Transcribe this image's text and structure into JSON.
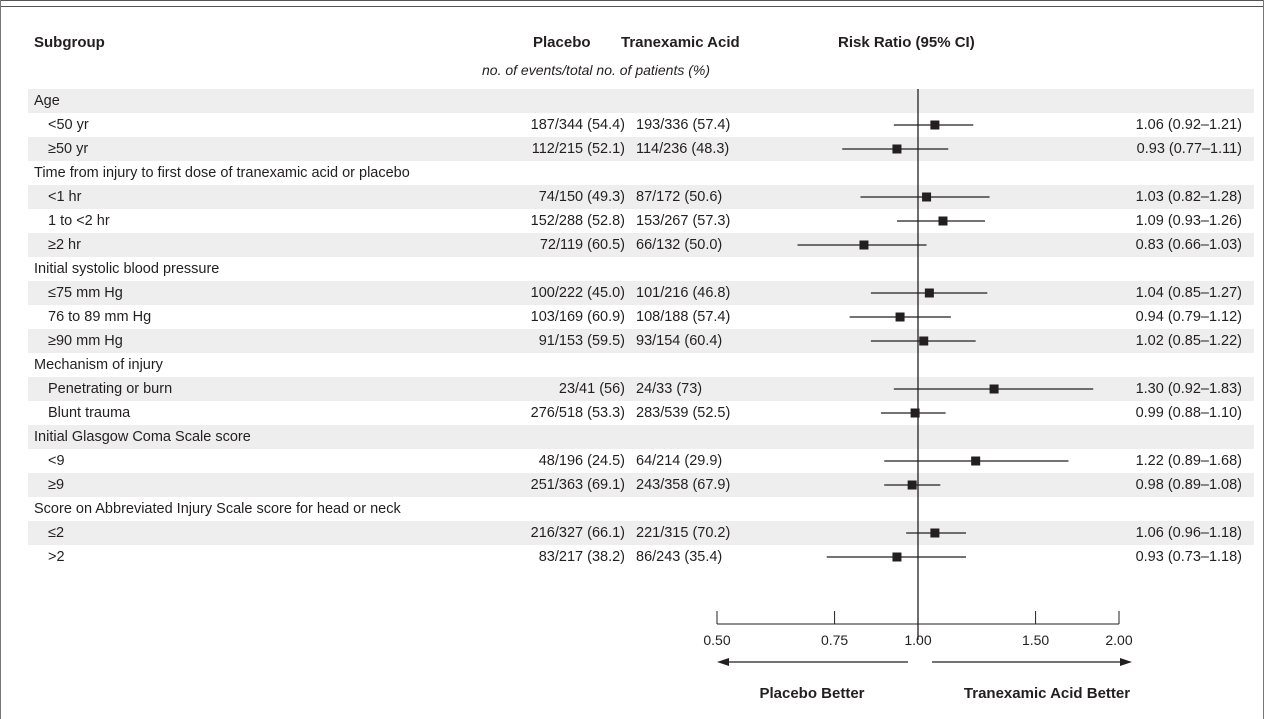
{
  "headers": {
    "subgroup": "Subgroup",
    "placebo": "Placebo",
    "tranexamic": "Tranexamic Acid",
    "risk_ratio": "Risk Ratio (95% CI)",
    "events_note": "no. of events/total no. of patients (%)"
  },
  "rows": [
    {
      "label": "Age",
      "type": "group"
    },
    {
      "label": "<50 yr",
      "type": "item",
      "placebo": "187/344 (54.4)",
      "txa": "193/336 (57.4)",
      "ci": "1.06 (0.92–1.21)"
    },
    {
      "label": "≥50 yr",
      "type": "item",
      "placebo": "112/215 (52.1)",
      "txa": "114/236 (48.3)",
      "ci": "0.93 (0.77–1.11)"
    },
    {
      "label": "Time from injury to first dose of tranexamic acid or placebo",
      "type": "group"
    },
    {
      "label": "<1 hr",
      "type": "item",
      "placebo": "74/150 (49.3)",
      "txa": "87/172 (50.6)",
      "ci": "1.03 (0.82–1.28)"
    },
    {
      "label": "1 to <2 hr",
      "type": "item",
      "placebo": "152/288 (52.8)",
      "txa": "153/267 (57.3)",
      "ci": "1.09 (0.93–1.26)"
    },
    {
      "label": "≥2 hr",
      "type": "item",
      "placebo": "72/119 (60.5)",
      "txa": "66/132 (50.0)",
      "ci": "0.83 (0.66–1.03)"
    },
    {
      "label": "Initial systolic blood pressure",
      "type": "group"
    },
    {
      "label": "≤75 mm Hg",
      "type": "item",
      "placebo": "100/222 (45.0)",
      "txa": "101/216 (46.8)",
      "ci": "1.04 (0.85–1.27)"
    },
    {
      "label": "76 to 89 mm Hg",
      "type": "item",
      "placebo": "103/169 (60.9)",
      "txa": "108/188 (57.4)",
      "ci": "0.94 (0.79–1.12)"
    },
    {
      "label": "≥90 mm Hg",
      "type": "item",
      "placebo": "91/153 (59.5)",
      "txa": "93/154 (60.4)",
      "ci": "1.02 (0.85–1.22)"
    },
    {
      "label": "Mechanism of injury",
      "type": "group"
    },
    {
      "label": "Penetrating or burn",
      "type": "item",
      "placebo": "23/41 (56)",
      "txa": "24/33 (73)",
      "ci": "1.30 (0.92–1.83)"
    },
    {
      "label": "Blunt trauma",
      "type": "item",
      "placebo": "276/518 (53.3)",
      "txa": "283/539 (52.5)",
      "ci": "0.99 (0.88–1.10)"
    },
    {
      "label": "Initial Glasgow Coma Scale score",
      "type": "group"
    },
    {
      "label": "<9",
      "type": "item",
      "placebo": "48/196 (24.5)",
      "txa": "64/214 (29.9)",
      "ci": "1.22 (0.89–1.68)"
    },
    {
      "label": "≥9",
      "type": "item",
      "placebo": "251/363 (69.1)",
      "txa": "243/358 (67.9)",
      "ci": "0.98 (0.89–1.08)"
    },
    {
      "label": "Score on Abbreviated Injury Scale score for head or neck",
      "type": "group"
    },
    {
      "label": "≤2",
      "type": "item",
      "placebo": "216/327 (66.1)",
      "txa": "221/315 (70.2)",
      "ci": "1.06 (0.96–1.18)"
    },
    {
      "label": ">2",
      "type": "item",
      "placebo": "83/217 (38.2)",
      "txa": "86/243 (35.4)",
      "ci": "0.93 (0.73–1.18)"
    }
  ],
  "axis": {
    "placebo_better": "Placebo Better",
    "txa_better": "Tranexamic Acid Better"
  },
  "colors": {
    "shade": "#eeeeef",
    "ink": "#231f20"
  },
  "chart_data": {
    "type": "forest",
    "title": "",
    "xlabel": "Risk Ratio (95% CI)",
    "x_scale": "log",
    "xlim": [
      0.5,
      2.0
    ],
    "ticks": [
      0.5,
      0.75,
      1.0,
      1.5,
      2.0
    ],
    "tick_labels": [
      "0.50",
      "0.75",
      "1.00",
      "1.50",
      "2.00"
    ],
    "reference_line": 1.0,
    "points": [
      {
        "row": 1,
        "rr": 1.06,
        "lo": 0.92,
        "hi": 1.21
      },
      {
        "row": 2,
        "rr": 0.93,
        "lo": 0.77,
        "hi": 1.11
      },
      {
        "row": 4,
        "rr": 1.03,
        "lo": 0.82,
        "hi": 1.28
      },
      {
        "row": 5,
        "rr": 1.09,
        "lo": 0.93,
        "hi": 1.26
      },
      {
        "row": 6,
        "rr": 0.83,
        "lo": 0.66,
        "hi": 1.03
      },
      {
        "row": 8,
        "rr": 1.04,
        "lo": 0.85,
        "hi": 1.27
      },
      {
        "row": 9,
        "rr": 0.94,
        "lo": 0.79,
        "hi": 1.12
      },
      {
        "row": 10,
        "rr": 1.02,
        "lo": 0.85,
        "hi": 1.22
      },
      {
        "row": 12,
        "rr": 1.3,
        "lo": 0.92,
        "hi": 1.83
      },
      {
        "row": 13,
        "rr": 0.99,
        "lo": 0.88,
        "hi": 1.1
      },
      {
        "row": 15,
        "rr": 1.22,
        "lo": 0.89,
        "hi": 1.68
      },
      {
        "row": 16,
        "rr": 0.98,
        "lo": 0.89,
        "hi": 1.08
      },
      {
        "row": 18,
        "rr": 1.06,
        "lo": 0.96,
        "hi": 1.18
      },
      {
        "row": 19,
        "rr": 0.93,
        "lo": 0.73,
        "hi": 1.18
      }
    ]
  }
}
